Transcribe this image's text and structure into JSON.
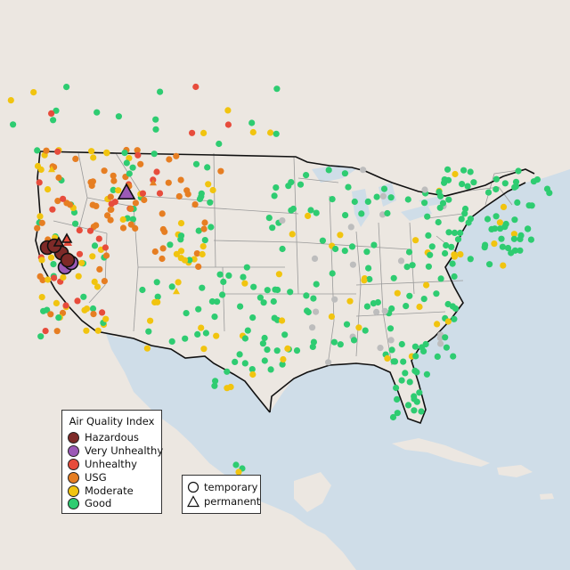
{
  "legend_aqi": {
    "title": "Air Quality Index",
    "items": [
      {
        "label": "Hazardous",
        "color": "#7e2a28"
      },
      {
        "label": "Very Unhealthy",
        "color": "#9b59b6"
      },
      {
        "label": "Unhealthy",
        "color": "#e74c3c"
      },
      {
        "label": "USG",
        "color": "#e67e22"
      },
      {
        "label": "Moderate",
        "color": "#f1c40f"
      },
      {
        "label": "Good",
        "color": "#2ecc71"
      }
    ]
  },
  "legend_type": {
    "items": [
      {
        "label": "temporary",
        "shape": "circle"
      },
      {
        "label": "permanent",
        "shape": "triangle"
      }
    ]
  },
  "colors": {
    "ocean": "#cfdde8",
    "land": "#ece7e1",
    "boundary": "#111111",
    "state_line": "#9a9a9a",
    "no_data": "#bdbdbd"
  }
}
